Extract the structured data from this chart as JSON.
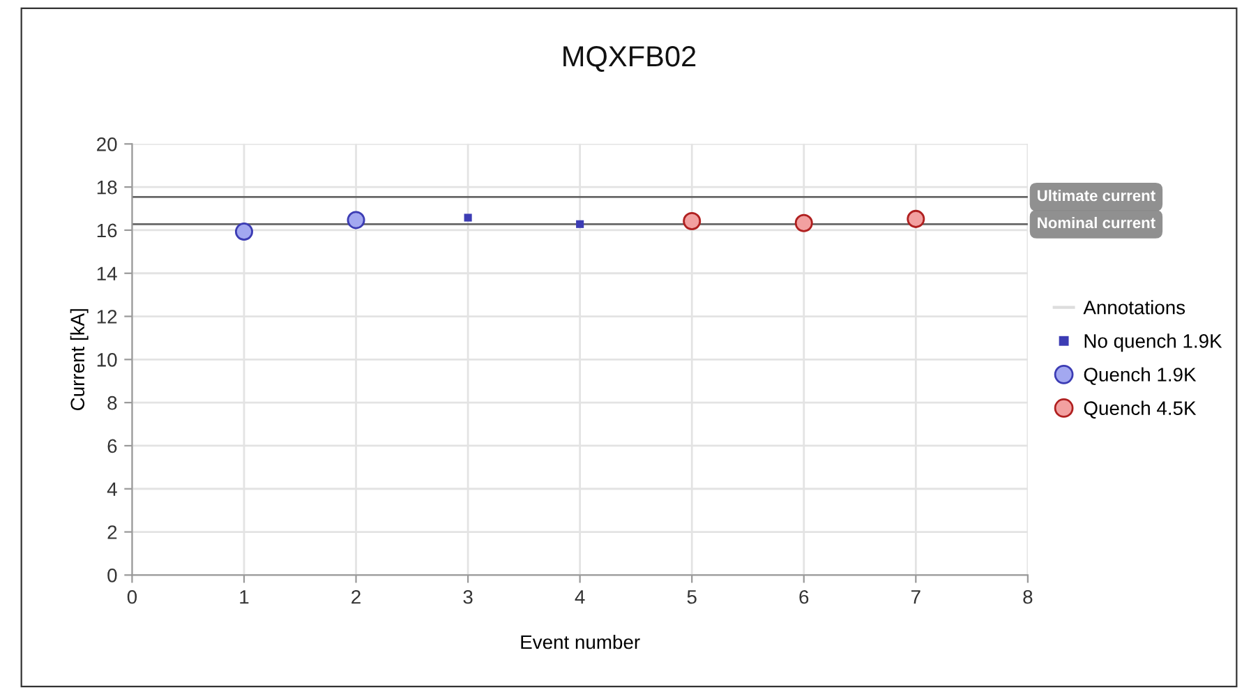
{
  "chart_data": {
    "type": "scatter",
    "title": "MQXFB02",
    "xlabel": "Event number",
    "ylabel": "Current [kA]",
    "xlim": [
      0,
      8
    ],
    "xticks": [
      0,
      1,
      2,
      3,
      4,
      5,
      6,
      7,
      8
    ],
    "ylim": [
      0,
      20
    ],
    "yticks": [
      0,
      2,
      4,
      6,
      8,
      10,
      12,
      14,
      16,
      18,
      20
    ],
    "grid": true,
    "legend": "right",
    "marker": "circle",
    "series": [
      {
        "name": "Annotations",
        "type": "line",
        "color": "#dddddd",
        "values": [
          null
        ]
      },
      {
        "name": "No quench 1.9K",
        "marker": "square",
        "color": "#3c3cb4",
        "x": [
          3,
          4
        ],
        "values": [
          16.58,
          16.28
        ]
      },
      {
        "name": "Quench 1.9K",
        "color": "#a3a8f0",
        "x": [
          1,
          2
        ],
        "values": [
          15.93,
          16.47
        ]
      },
      {
        "name": "Quench 4.5K",
        "color": "#f2a0a0",
        "x": [
          5,
          6,
          7
        ],
        "values": [
          16.42,
          16.33,
          16.52
        ]
      }
    ],
    "ref_lines": [
      {
        "axis": "y",
        "value": 17.54,
        "label": "Ultimate current",
        "color": "#666666"
      },
      {
        "axis": "y",
        "value": 16.28,
        "label": "Nominal current",
        "color": "#666666"
      }
    ]
  }
}
